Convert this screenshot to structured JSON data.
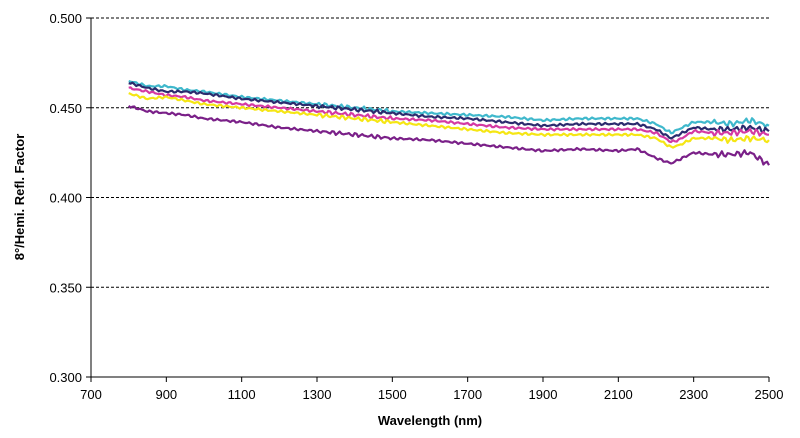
{
  "chart_data": {
    "type": "line",
    "title": "",
    "xlabel": "Wavelength (nm)",
    "ylabel": "8°/Hemi. Refl. Factor",
    "xlim": [
      700,
      2500
    ],
    "ylim": [
      0.3,
      0.5
    ],
    "x_ticks": [
      700,
      900,
      1100,
      1300,
      1500,
      1700,
      1900,
      2100,
      2300,
      2500
    ],
    "y_ticks": [
      0.3,
      0.35,
      0.4,
      0.45,
      0.5
    ],
    "x_tick_labels": [
      "700",
      "900",
      "1100",
      "1300",
      "1500",
      "1700",
      "1900",
      "2100",
      "2300",
      "2500"
    ],
    "y_tick_labels": [
      "0.300",
      "0.350",
      "0.400",
      "0.450",
      "0.500"
    ],
    "grid": "horizontal-dashed",
    "x": [
      800,
      850,
      900,
      950,
      1000,
      1100,
      1200,
      1300,
      1400,
      1500,
      1600,
      1700,
      1800,
      1900,
      2000,
      2100,
      2150,
      2200,
      2240,
      2260,
      2300,
      2350,
      2400,
      2450,
      2500
    ],
    "series": [
      {
        "name": "cyan",
        "color": "#3fb8cc",
        "values": [
          0.465,
          0.462,
          0.462,
          0.46,
          0.459,
          0.456,
          0.454,
          0.452,
          0.45,
          0.448,
          0.447,
          0.446,
          0.445,
          0.443,
          0.444,
          0.444,
          0.444,
          0.441,
          0.436,
          0.438,
          0.442,
          0.442,
          0.441,
          0.443,
          0.44
        ]
      },
      {
        "name": "navy",
        "color": "#2b2b6e",
        "values": [
          0.464,
          0.461,
          0.459,
          0.459,
          0.458,
          0.455,
          0.453,
          0.451,
          0.449,
          0.447,
          0.445,
          0.444,
          0.442,
          0.44,
          0.441,
          0.441,
          0.441,
          0.438,
          0.433,
          0.435,
          0.439,
          0.438,
          0.438,
          0.439,
          0.437
        ]
      },
      {
        "name": "magenta",
        "color": "#d43aa3",
        "values": [
          0.461,
          0.459,
          0.457,
          0.456,
          0.454,
          0.452,
          0.45,
          0.448,
          0.446,
          0.444,
          0.443,
          0.441,
          0.439,
          0.438,
          0.438,
          0.438,
          0.438,
          0.436,
          0.431,
          0.432,
          0.437,
          0.436,
          0.436,
          0.437,
          0.435
        ]
      },
      {
        "name": "yellow",
        "color": "#f5e614",
        "values": [
          0.458,
          0.455,
          0.456,
          0.454,
          0.452,
          0.45,
          0.448,
          0.446,
          0.444,
          0.442,
          0.44,
          0.438,
          0.436,
          0.435,
          0.435,
          0.435,
          0.435,
          0.433,
          0.428,
          0.429,
          0.433,
          0.433,
          0.432,
          0.433,
          0.432
        ]
      },
      {
        "name": "purple",
        "color": "#7a2088",
        "values": [
          0.451,
          0.448,
          0.447,
          0.446,
          0.444,
          0.442,
          0.439,
          0.437,
          0.435,
          0.433,
          0.432,
          0.43,
          0.428,
          0.426,
          0.427,
          0.426,
          0.427,
          0.422,
          0.419,
          0.421,
          0.425,
          0.424,
          0.424,
          0.425,
          0.418
        ]
      }
    ]
  }
}
